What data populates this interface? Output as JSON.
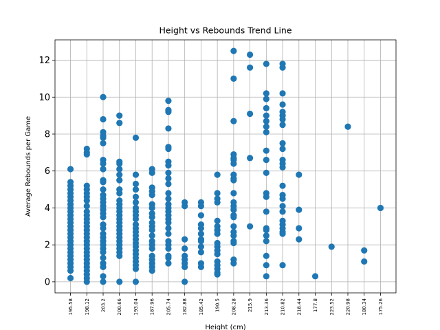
{
  "chart_data": {
    "type": "scatter",
    "title": "Height vs Rebounds Trend Line",
    "xlabel": "Height (cm)",
    "ylabel": "Average Rebounds per Game",
    "categories": [
      "195.58",
      "198.12",
      "203.2",
      "200.66",
      "193.04",
      "187.96",
      "205.74",
      "182.88",
      "185.42",
      "190.5",
      "208.28",
      "215.9",
      "213.36",
      "210.82",
      "218.44",
      "177.8",
      "223.52",
      "220.98",
      "180.34",
      "175.26"
    ],
    "ylim": [
      -0.6,
      13.1
    ],
    "yticks": [
      0,
      2,
      4,
      6,
      8,
      10,
      12
    ],
    "grid": true,
    "color": "#1f77b4",
    "points": [
      [
        "195.58",
        6.1
      ],
      [
        "195.58",
        5.4
      ],
      [
        "195.58",
        5.2
      ],
      [
        "195.58",
        5.0
      ],
      [
        "195.58",
        4.8
      ],
      [
        "195.58",
        4.6
      ],
      [
        "195.58",
        4.4
      ],
      [
        "195.58",
        4.2
      ],
      [
        "195.58",
        4.0
      ],
      [
        "195.58",
        3.8
      ],
      [
        "195.58",
        3.6
      ],
      [
        "195.58",
        3.4
      ],
      [
        "195.58",
        3.2
      ],
      [
        "195.58",
        3.0
      ],
      [
        "195.58",
        2.8
      ],
      [
        "195.58",
        2.6
      ],
      [
        "195.58",
        2.4
      ],
      [
        "195.58",
        2.2
      ],
      [
        "195.58",
        2.0
      ],
      [
        "195.58",
        1.8
      ],
      [
        "195.58",
        1.6
      ],
      [
        "195.58",
        1.4
      ],
      [
        "195.58",
        1.2
      ],
      [
        "195.58",
        1.0
      ],
      [
        "195.58",
        0.8
      ],
      [
        "195.58",
        0.6
      ],
      [
        "195.58",
        0.2
      ],
      [
        "198.12",
        7.2
      ],
      [
        "198.12",
        7.0
      ],
      [
        "198.12",
        6.9
      ],
      [
        "198.12",
        5.2
      ],
      [
        "198.12",
        5.0
      ],
      [
        "198.12",
        4.8
      ],
      [
        "198.12",
        4.6
      ],
      [
        "198.12",
        4.4
      ],
      [
        "198.12",
        4.1
      ],
      [
        "198.12",
        3.8
      ],
      [
        "198.12",
        3.6
      ],
      [
        "198.12",
        3.4
      ],
      [
        "198.12",
        3.2
      ],
      [
        "198.12",
        3.0
      ],
      [
        "198.12",
        2.8
      ],
      [
        "198.12",
        2.6
      ],
      [
        "198.12",
        2.4
      ],
      [
        "198.12",
        2.2
      ],
      [
        "198.12",
        2.0
      ],
      [
        "198.12",
        1.8
      ],
      [
        "198.12",
        1.6
      ],
      [
        "198.12",
        1.4
      ],
      [
        "198.12",
        1.2
      ],
      [
        "198.12",
        1.0
      ],
      [
        "198.12",
        0.8
      ],
      [
        "198.12",
        0.6
      ],
      [
        "198.12",
        0.4
      ],
      [
        "198.12",
        0.2
      ],
      [
        "198.12",
        0.0
      ],
      [
        "203.2",
        10.0
      ],
      [
        "203.2",
        8.8
      ],
      [
        "203.2",
        8.1
      ],
      [
        "203.2",
        7.9
      ],
      [
        "203.2",
        7.8
      ],
      [
        "203.2",
        7.5
      ],
      [
        "203.2",
        6.6
      ],
      [
        "203.2",
        6.4
      ],
      [
        "203.2",
        6.1
      ],
      [
        "203.2",
        5.5
      ],
      [
        "203.2",
        5.4
      ],
      [
        "203.2",
        5.0
      ],
      [
        "203.2",
        4.7
      ],
      [
        "203.2",
        4.5
      ],
      [
        "203.2",
        4.3
      ],
      [
        "203.2",
        4.1
      ],
      [
        "203.2",
        3.9
      ],
      [
        "203.2",
        3.7
      ],
      [
        "203.2",
        3.5
      ],
      [
        "203.2",
        3.1
      ],
      [
        "203.2",
        2.9
      ],
      [
        "203.2",
        2.6
      ],
      [
        "203.2",
        2.4
      ],
      [
        "203.2",
        2.2
      ],
      [
        "203.2",
        2.0
      ],
      [
        "203.2",
        1.8
      ],
      [
        "203.2",
        1.6
      ],
      [
        "203.2",
        1.3
      ],
      [
        "203.2",
        1.0
      ],
      [
        "203.2",
        0.8
      ],
      [
        "203.2",
        0.3
      ],
      [
        "203.2",
        0.0
      ],
      [
        "200.66",
        9.0
      ],
      [
        "200.66",
        8.6
      ],
      [
        "200.66",
        6.5
      ],
      [
        "200.66",
        6.4
      ],
      [
        "200.66",
        6.1
      ],
      [
        "200.66",
        5.8
      ],
      [
        "200.66",
        5.5
      ],
      [
        "200.66",
        5.0
      ],
      [
        "200.66",
        4.8
      ],
      [
        "200.66",
        4.4
      ],
      [
        "200.66",
        4.2
      ],
      [
        "200.66",
        4.0
      ],
      [
        "200.66",
        3.8
      ],
      [
        "200.66",
        3.6
      ],
      [
        "200.66",
        3.4
      ],
      [
        "200.66",
        3.2
      ],
      [
        "200.66",
        3.0
      ],
      [
        "200.66",
        2.8
      ],
      [
        "200.66",
        2.6
      ],
      [
        "200.66",
        2.4
      ],
      [
        "200.66",
        2.2
      ],
      [
        "200.66",
        2.0
      ],
      [
        "200.66",
        1.8
      ],
      [
        "200.66",
        1.6
      ],
      [
        "200.66",
        1.4
      ],
      [
        "200.66",
        0.0
      ],
      [
        "193.04",
        7.8
      ],
      [
        "193.04",
        5.8
      ],
      [
        "193.04",
        5.3
      ],
      [
        "193.04",
        5.0
      ],
      [
        "193.04",
        4.6
      ],
      [
        "193.04",
        4.3
      ],
      [
        "193.04",
        4.0
      ],
      [
        "193.04",
        3.8
      ],
      [
        "193.04",
        3.6
      ],
      [
        "193.04",
        3.4
      ],
      [
        "193.04",
        3.1
      ],
      [
        "193.04",
        2.9
      ],
      [
        "193.04",
        2.7
      ],
      [
        "193.04",
        2.5
      ],
      [
        "193.04",
        2.3
      ],
      [
        "193.04",
        2.1
      ],
      [
        "193.04",
        1.9
      ],
      [
        "193.04",
        1.7
      ],
      [
        "193.04",
        1.5
      ],
      [
        "193.04",
        1.3
      ],
      [
        "193.04",
        1.1
      ],
      [
        "193.04",
        0.9
      ],
      [
        "193.04",
        0.7
      ],
      [
        "193.04",
        0.0
      ],
      [
        "187.96",
        6.1
      ],
      [
        "187.96",
        5.9
      ],
      [
        "187.96",
        5.1
      ],
      [
        "187.96",
        4.9
      ],
      [
        "187.96",
        4.7
      ],
      [
        "187.96",
        4.2
      ],
      [
        "187.96",
        4.0
      ],
      [
        "187.96",
        3.7
      ],
      [
        "187.96",
        3.5
      ],
      [
        "187.96",
        3.2
      ],
      [
        "187.96",
        3.0
      ],
      [
        "187.96",
        2.8
      ],
      [
        "187.96",
        2.5
      ],
      [
        "187.96",
        2.2
      ],
      [
        "187.96",
        2.0
      ],
      [
        "187.96",
        1.8
      ],
      [
        "187.96",
        1.4
      ],
      [
        "187.96",
        1.2
      ],
      [
        "187.96",
        1.0
      ],
      [
        "187.96",
        0.8
      ],
      [
        "187.96",
        0.6
      ],
      [
        "205.74",
        9.8
      ],
      [
        "205.74",
        9.3
      ],
      [
        "205.74",
        9.2
      ],
      [
        "205.74",
        8.3
      ],
      [
        "205.74",
        7.3
      ],
      [
        "205.74",
        7.2
      ],
      [
        "205.74",
        6.5
      ],
      [
        "205.74",
        6.3
      ],
      [
        "205.74",
        5.9
      ],
      [
        "205.74",
        5.6
      ],
      [
        "205.74",
        5.3
      ],
      [
        "205.74",
        4.8
      ],
      [
        "205.74",
        4.5
      ],
      [
        "205.74",
        4.2
      ],
      [
        "205.74",
        4.0
      ],
      [
        "205.74",
        3.8
      ],
      [
        "205.74",
        3.6
      ],
      [
        "205.74",
        3.4
      ],
      [
        "205.74",
        3.2
      ],
      [
        "205.74",
        2.9
      ],
      [
        "205.74",
        2.6
      ],
      [
        "205.74",
        2.2
      ],
      [
        "205.74",
        2.0
      ],
      [
        "205.74",
        1.8
      ],
      [
        "205.74",
        1.4
      ],
      [
        "205.74",
        1.3
      ],
      [
        "205.74",
        1.0
      ],
      [
        "182.88",
        4.3
      ],
      [
        "182.88",
        4.1
      ],
      [
        "182.88",
        2.3
      ],
      [
        "182.88",
        1.8
      ],
      [
        "182.88",
        1.4
      ],
      [
        "182.88",
        1.2
      ],
      [
        "182.88",
        1.0
      ],
      [
        "182.88",
        0.8
      ],
      [
        "182.88",
        0.0
      ],
      [
        "185.42",
        4.3
      ],
      [
        "185.42",
        4.1
      ],
      [
        "185.42",
        3.6
      ],
      [
        "185.42",
        3.1
      ],
      [
        "185.42",
        2.9
      ],
      [
        "185.42",
        2.6
      ],
      [
        "185.42",
        2.3
      ],
      [
        "185.42",
        2.2
      ],
      [
        "185.42",
        1.9
      ],
      [
        "185.42",
        1.6
      ],
      [
        "185.42",
        1.0
      ],
      [
        "185.42",
        0.8
      ],
      [
        "190.5",
        5.8
      ],
      [
        "190.5",
        4.8
      ],
      [
        "190.5",
        4.5
      ],
      [
        "190.5",
        4.3
      ],
      [
        "190.5",
        3.3
      ],
      [
        "190.5",
        3.0
      ],
      [
        "190.5",
        2.8
      ],
      [
        "190.5",
        2.6
      ],
      [
        "190.5",
        2.1
      ],
      [
        "190.5",
        1.9
      ],
      [
        "190.5",
        1.7
      ],
      [
        "190.5",
        1.5
      ],
      [
        "190.5",
        1.1
      ],
      [
        "190.5",
        0.9
      ],
      [
        "190.5",
        0.7
      ],
      [
        "190.5",
        0.5
      ],
      [
        "190.5",
        0.4
      ],
      [
        "208.28",
        12.5
      ],
      [
        "208.28",
        11.0
      ],
      [
        "208.28",
        8.7
      ],
      [
        "208.28",
        6.9
      ],
      [
        "208.28",
        6.7
      ],
      [
        "208.28",
        6.6
      ],
      [
        "208.28",
        6.4
      ],
      [
        "208.28",
        5.8
      ],
      [
        "208.28",
        5.6
      ],
      [
        "208.28",
        5.5
      ],
      [
        "208.28",
        4.8
      ],
      [
        "208.28",
        4.3
      ],
      [
        "208.28",
        4.1
      ],
      [
        "208.28",
        3.9
      ],
      [
        "208.28",
        3.6
      ],
      [
        "208.28",
        3.5
      ],
      [
        "208.28",
        3.0
      ],
      [
        "208.28",
        2.7
      ],
      [
        "208.28",
        2.5
      ],
      [
        "208.28",
        2.2
      ],
      [
        "208.28",
        2.1
      ],
      [
        "208.28",
        1.2
      ],
      [
        "208.28",
        1.0
      ],
      [
        "215.9",
        12.3
      ],
      [
        "215.9",
        11.6
      ],
      [
        "215.9",
        9.1
      ],
      [
        "215.9",
        6.7
      ],
      [
        "215.9",
        3.0
      ],
      [
        "213.36",
        11.8
      ],
      [
        "213.36",
        10.2
      ],
      [
        "213.36",
        9.9
      ],
      [
        "213.36",
        9.4
      ],
      [
        "213.36",
        9.0
      ],
      [
        "213.36",
        8.7
      ],
      [
        "213.36",
        8.4
      ],
      [
        "213.36",
        8.1
      ],
      [
        "213.36",
        7.1
      ],
      [
        "213.36",
        6.6
      ],
      [
        "213.36",
        5.9
      ],
      [
        "213.36",
        4.8
      ],
      [
        "213.36",
        4.6
      ],
      [
        "213.36",
        3.8
      ],
      [
        "213.36",
        2.9
      ],
      [
        "213.36",
        2.8
      ],
      [
        "213.36",
        2.5
      ],
      [
        "213.36",
        2.2
      ],
      [
        "213.36",
        1.4
      ],
      [
        "213.36",
        0.9
      ],
      [
        "213.36",
        0.3
      ],
      [
        "210.82",
        11.8
      ],
      [
        "210.82",
        11.6
      ],
      [
        "210.82",
        10.2
      ],
      [
        "210.82",
        9.6
      ],
      [
        "210.82",
        9.2
      ],
      [
        "210.82",
        9.0
      ],
      [
        "210.82",
        8.8
      ],
      [
        "210.82",
        8.5
      ],
      [
        "210.82",
        7.5
      ],
      [
        "210.82",
        7.2
      ],
      [
        "210.82",
        6.6
      ],
      [
        "210.82",
        6.4
      ],
      [
        "210.82",
        6.2
      ],
      [
        "210.82",
        5.2
      ],
      [
        "210.82",
        4.7
      ],
      [
        "210.82",
        4.5
      ],
      [
        "210.82",
        4.1
      ],
      [
        "210.82",
        3.8
      ],
      [
        "210.82",
        3.3
      ],
      [
        "210.82",
        3.1
      ],
      [
        "210.82",
        2.9
      ],
      [
        "210.82",
        2.7
      ],
      [
        "210.82",
        2.6
      ],
      [
        "210.82",
        0.9
      ],
      [
        "218.44",
        5.8
      ],
      [
        "218.44",
        3.9
      ],
      [
        "218.44",
        2.9
      ],
      [
        "218.44",
        2.3
      ],
      [
        "177.8",
        0.3
      ],
      [
        "223.52",
        1.9
      ],
      [
        "220.98",
        8.4
      ],
      [
        "180.34",
        1.7
      ],
      [
        "180.34",
        1.1
      ],
      [
        "175.26",
        4.0
      ]
    ]
  }
}
